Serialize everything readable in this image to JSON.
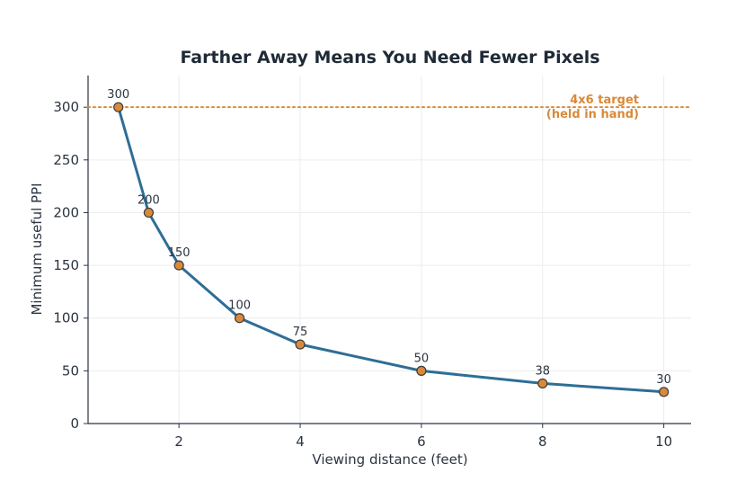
{
  "chart_data": {
    "type": "line",
    "title": "Farther Away Means You Need Fewer Pixels",
    "xlabel": "Viewing distance (feet)",
    "ylabel": "Minimum useful PPI",
    "xlim": [
      0.5,
      10.45
    ],
    "ylim": [
      0,
      330
    ],
    "x_ticks": [
      2,
      4,
      6,
      8,
      10
    ],
    "y_ticks": [
      0,
      50,
      100,
      150,
      200,
      250,
      300
    ],
    "grid": true,
    "x": [
      1,
      1.5,
      2,
      3,
      4,
      6,
      8,
      10
    ],
    "values": [
      300,
      200,
      150,
      100,
      75,
      50,
      38,
      30
    ],
    "data_labels": [
      "300",
      "200",
      "150",
      "100",
      "75",
      "50",
      "38",
      "30"
    ],
    "reference_line": {
      "y": 300,
      "label_line1": "4x6 target",
      "label_line2": "(held in hand)"
    },
    "colors": {
      "line": "#2e6e96",
      "marker_fill": "#d9893a",
      "marker_edge": "#3a3a3a",
      "reference": "#d9893a",
      "grid": "#ececec",
      "axis": "#2b3440"
    }
  }
}
